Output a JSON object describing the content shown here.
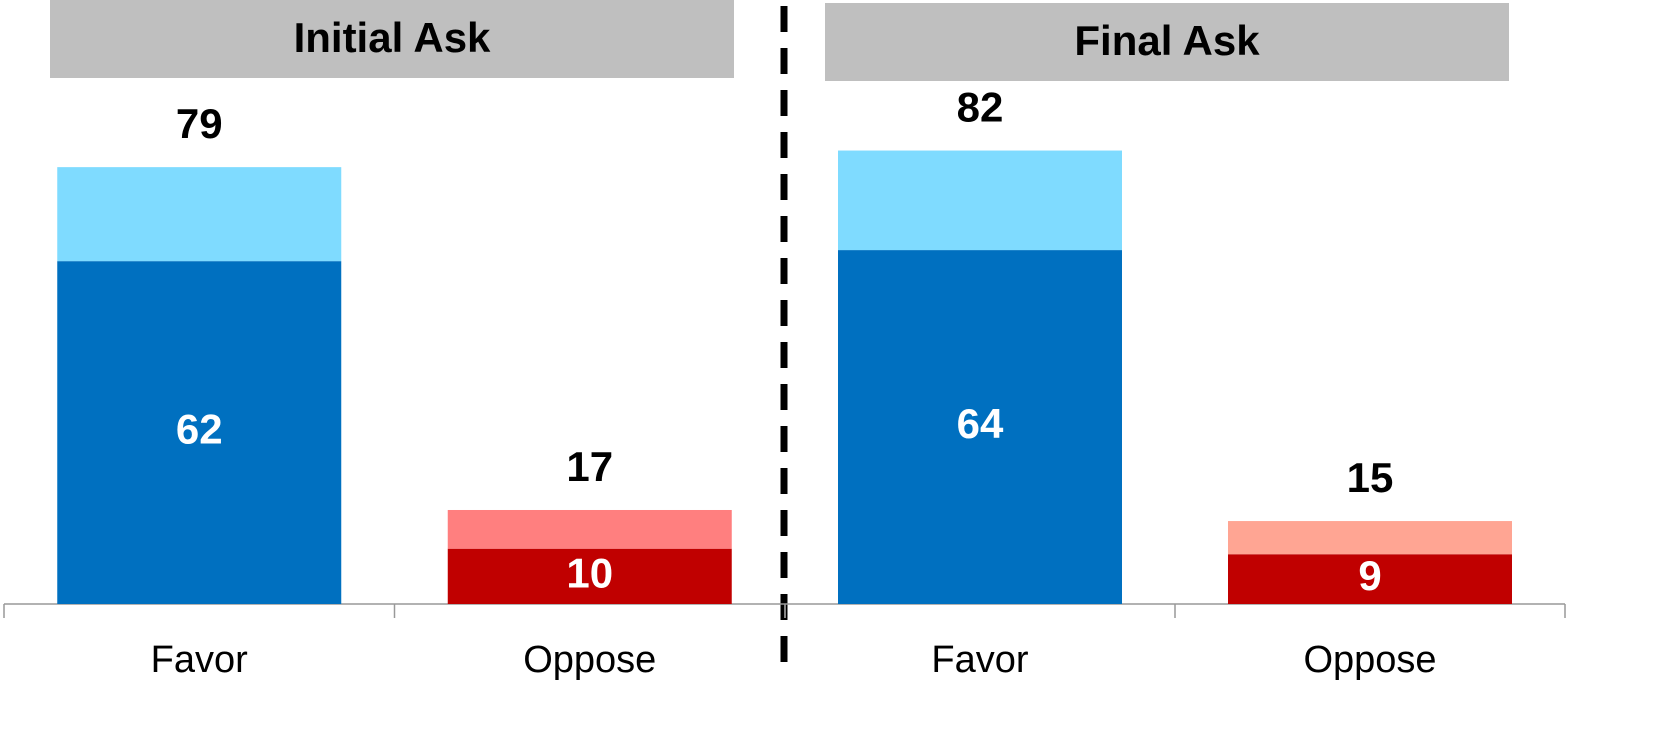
{
  "chart_data": [
    {
      "type": "bar",
      "title": "Initial Ask",
      "categories": [
        "Favor",
        "Oppose"
      ],
      "series": [
        {
          "colors": [
            "#0070c0",
            "#c00000"
          ],
          "values": [
            62,
            10
          ]
        },
        {
          "colors": [
            "#7fdbff",
            "#ff7f7f"
          ],
          "values": [
            17,
            7
          ]
        }
      ],
      "totals": [
        79,
        17
      ],
      "ylim": [
        0,
        100
      ]
    },
    {
      "type": "bar",
      "title": "Final Ask",
      "categories": [
        "Favor",
        "Oppose"
      ],
      "series": [
        {
          "colors": [
            "#0070c0",
            "#c00000"
          ],
          "values": [
            64,
            9
          ]
        },
        {
          "colors": [
            "#7fdbff",
            "#ffa593"
          ],
          "values": [
            18,
            6
          ]
        }
      ],
      "totals": [
        82,
        15
      ],
      "ylim": [
        0,
        100
      ]
    }
  ]
}
